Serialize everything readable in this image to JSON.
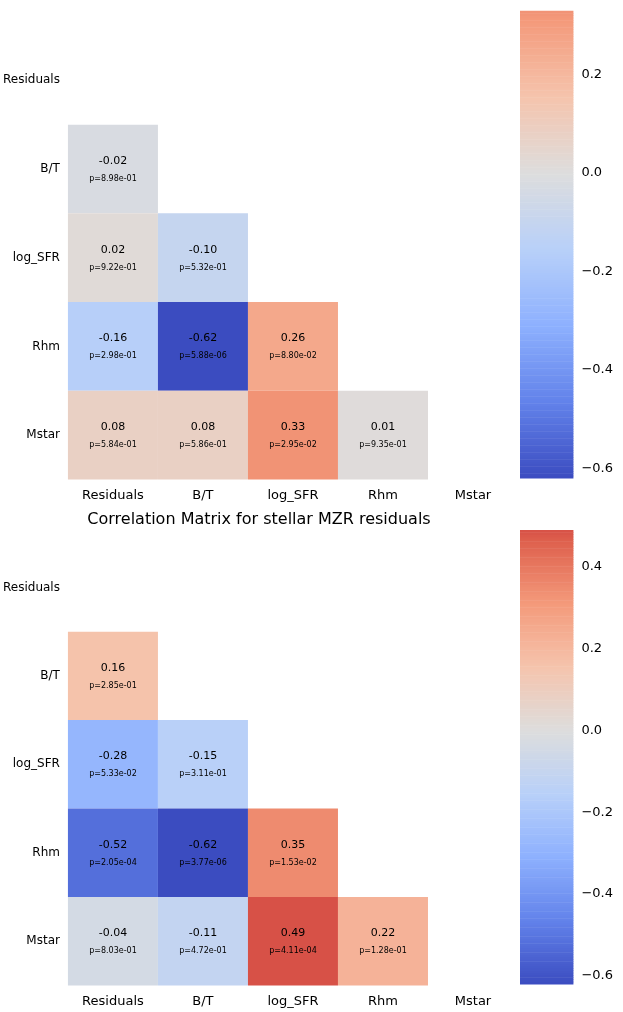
{
  "chart_data": [
    {
      "type": "heatmap",
      "categories": [
        "Residuals",
        "B/T",
        "log_SFR",
        "Rhm",
        "Mstar"
      ],
      "y_categories": [
        "Residuals",
        "B/T",
        "log_SFR",
        "Rhm",
        "Mstar"
      ],
      "cells": [
        [
          null,
          null,
          null,
          null,
          null
        ],
        [
          -0.02,
          null,
          null,
          null,
          null
        ],
        [
          0.02,
          -0.1,
          null,
          null,
          null
        ],
        [
          -0.16,
          -0.62,
          0.26,
          null,
          null
        ],
        [
          0.08,
          0.08,
          0.33,
          0.01,
          null
        ]
      ],
      "cell_labels": [
        [
          null,
          null,
          null,
          null,
          null
        ],
        [
          "-0.02\np=8.98e-01",
          null,
          null,
          null,
          null
        ],
        [
          "0.02\np=9.22e-01",
          "-0.10\np=5.32e-01",
          null,
          null,
          null
        ],
        [
          "-0.16\np=2.98e-01",
          "-0.62\np=5.88e-06",
          "0.26\np=8.80e-02",
          null,
          null
        ],
        [
          "0.08\np=5.84e-01",
          "0.08\np=5.86e-01",
          "0.33\np=2.95e-02",
          "0.01\np=9.35e-01",
          null
        ]
      ],
      "clim": [
        -0.62,
        0.33
      ],
      "cticks": [
        {
          "value": -0.6,
          "label": "−0.6"
        },
        {
          "value": -0.4,
          "label": "−0.4"
        },
        {
          "value": -0.2,
          "label": "−0.2"
        },
        {
          "value": 0,
          "label": "0.0"
        },
        {
          "value": 0.2,
          "label": "0.2"
        }
      ]
    },
    {
      "type": "heatmap",
      "title": "Correlation Matrix for stellar MZR residuals",
      "categories": [
        "Residuals",
        "B/T",
        "log_SFR",
        "Rhm",
        "Mstar"
      ],
      "y_categories": [
        "Residuals",
        "B/T",
        "log_SFR",
        "Rhm",
        "Mstar"
      ],
      "cells": [
        [
          null,
          null,
          null,
          null,
          null
        ],
        [
          0.16,
          null,
          null,
          null,
          null
        ],
        [
          -0.28,
          -0.15,
          null,
          null,
          null
        ],
        [
          -0.52,
          -0.62,
          0.35,
          null,
          null
        ],
        [
          -0.04,
          -0.11,
          0.49,
          0.22,
          null
        ]
      ],
      "cell_labels": [
        [
          null,
          null,
          null,
          null,
          null
        ],
        [
          "0.16\np=2.85e-01",
          null,
          null,
          null,
          null
        ],
        [
          "-0.28\np=5.33e-02",
          "-0.15\np=3.11e-01",
          null,
          null,
          null
        ],
        [
          "-0.52\np=2.05e-04",
          "-0.62\np=3.77e-06",
          "0.35\np=1.53e-02",
          null,
          null
        ],
        [
          "-0.04\np=8.03e-01",
          "-0.11\np=4.72e-01",
          "0.49\np=4.11e-04",
          "0.22\np=1.28e-01",
          null
        ]
      ],
      "clim": [
        -0.62,
        0.49
      ],
      "cticks": [
        {
          "value": -0.6,
          "label": "−0.6"
        },
        {
          "value": -0.4,
          "label": "−0.4"
        },
        {
          "value": -0.2,
          "label": "−0.2"
        },
        {
          "value": 0,
          "label": "0.0"
        },
        {
          "value": 0.2,
          "label": "0.2"
        },
        {
          "value": 0.4,
          "label": "0.4"
        }
      ]
    }
  ]
}
